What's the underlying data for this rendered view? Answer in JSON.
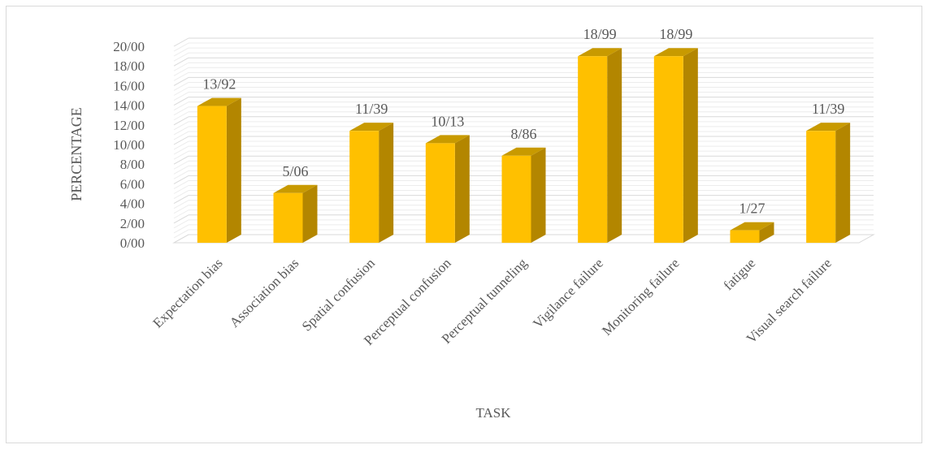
{
  "chart_data": {
    "type": "bar",
    "title": "",
    "xlabel": "TASK",
    "ylabel": "PERCENTAGE",
    "ylim": [
      0,
      20
    ],
    "y_ticks": [
      {
        "value": 0,
        "label": "0/00"
      },
      {
        "value": 2,
        "label": "2/00"
      },
      {
        "value": 4,
        "label": "4/00"
      },
      {
        "value": 6,
        "label": "6/00"
      },
      {
        "value": 8,
        "label": "8/00"
      },
      {
        "value": 10,
        "label": "10/00"
      },
      {
        "value": 12,
        "label": "12/00"
      },
      {
        "value": 14,
        "label": "14/00"
      },
      {
        "value": 16,
        "label": "16/00"
      },
      {
        "value": 18,
        "label": "18/00"
      },
      {
        "value": 20,
        "label": "20/00"
      }
    ],
    "categories": [
      "Expectation bias",
      "Association bias",
      "Spatial confusion",
      "Perceptual confusion",
      "Perceptual tunneling",
      "Vigilance failure",
      "Monitoring failure",
      "fatigue",
      "Visual search failure"
    ],
    "values": [
      13.92,
      5.06,
      11.39,
      10.13,
      8.86,
      18.99,
      18.99,
      1.27,
      11.39
    ],
    "data_labels": [
      "13/92",
      "5/06",
      "11/39",
      "10/13",
      "8/86",
      "18/99",
      "18/99",
      "1/27",
      "11/39"
    ],
    "grid": true,
    "legend": "none",
    "colors": {
      "front": "#ffc000",
      "side": "#b38600",
      "top": "#c89a00",
      "grid": "#d9d9d9",
      "text": "#595959"
    }
  }
}
